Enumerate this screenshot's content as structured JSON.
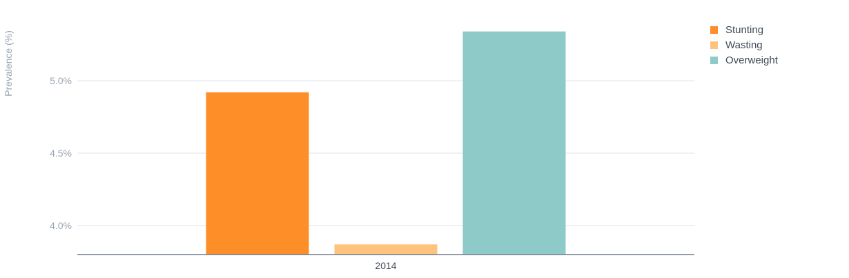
{
  "chart_data": {
    "type": "bar",
    "categories": [
      "2014"
    ],
    "series": [
      {
        "name": "Stunting",
        "values": [
          4.92
        ],
        "color": "#fd8e28"
      },
      {
        "name": "Wasting",
        "values": [
          3.87
        ],
        "color": "#fec37c"
      },
      {
        "name": "Overweight",
        "values": [
          5.34
        ],
        "color": "#8ecac8"
      }
    ],
    "ylabel": "Prevalence (%)",
    "xlabel": "",
    "ylim": [
      3.8,
      5.5
    ],
    "yticks": [
      4.0,
      4.5,
      5.0
    ],
    "ytick_labels": [
      "4.0%",
      "4.5%",
      "5.0%"
    ],
    "grid": true,
    "legend_position": "top-right"
  }
}
